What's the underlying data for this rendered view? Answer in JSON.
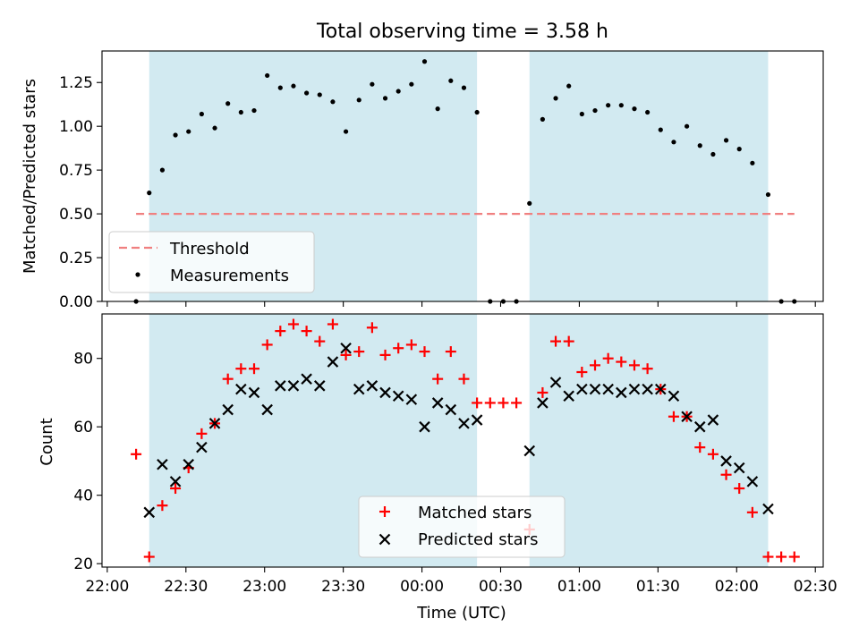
{
  "figure": {
    "title": "Total observing time = 3.58 h",
    "xlabel": "Time (UTC)"
  },
  "chart_data": [
    {
      "type": "scatter",
      "panel": "top",
      "ylabel": "Matched/Predicted stars",
      "xlim": [
        "21:58",
        "02:33"
      ],
      "ylim": [
        0,
        1.43
      ],
      "yticks": [
        {
          "value": 0.0,
          "label": "0.00"
        },
        {
          "value": 0.25,
          "label": "0.25"
        },
        {
          "value": 0.5,
          "label": "0.50"
        },
        {
          "value": 0.75,
          "label": "0.75"
        },
        {
          "value": 1.0,
          "label": "1.00"
        },
        {
          "value": 1.25,
          "label": "1.25"
        }
      ],
      "shaded_intervals": [
        [
          "22:16",
          "00:21"
        ],
        [
          "00:41",
          "02:12"
        ]
      ],
      "shade_color": "#add8e6",
      "threshold": {
        "name": "Threshold",
        "value": 0.5,
        "x_range": [
          "22:11",
          "02:22"
        ],
        "color": "#f08080"
      },
      "series": [
        {
          "name": "Measurements",
          "color": "#000000",
          "x": [
            "22:11",
            "22:16",
            "22:21",
            "22:26",
            "22:31",
            "22:36",
            "22:41",
            "22:46",
            "22:51",
            "22:56",
            "23:01",
            "23:06",
            "23:11",
            "23:16",
            "23:21",
            "23:26",
            "23:31",
            "23:36",
            "23:41",
            "23:46",
            "23:51",
            "23:56",
            "00:01",
            "00:06",
            "00:11",
            "00:16",
            "00:21",
            "00:26",
            "00:31",
            "00:36",
            "00:41",
            "00:46",
            "00:51",
            "00:56",
            "01:01",
            "01:06",
            "01:11",
            "01:16",
            "01:21",
            "01:26",
            "01:31",
            "01:36",
            "01:41",
            "01:46",
            "01:51",
            "01:56",
            "02:01",
            "02:06",
            "02:12",
            "02:17",
            "02:22"
          ],
          "y": [
            0.0,
            0.62,
            0.75,
            0.95,
            0.97,
            1.07,
            0.99,
            1.13,
            1.08,
            1.09,
            1.29,
            1.22,
            1.23,
            1.19,
            1.18,
            1.14,
            0.97,
            1.15,
            1.24,
            1.16,
            1.2,
            1.24,
            1.37,
            1.1,
            1.26,
            1.22,
            1.08,
            0.0,
            0.0,
            0.0,
            0.56,
            1.04,
            1.16,
            1.23,
            1.07,
            1.09,
            1.12,
            1.12,
            1.1,
            1.08,
            0.98,
            0.91,
            1.0,
            0.89,
            0.84,
            0.92,
            0.87,
            0.79,
            0.61,
            0.0,
            0.0
          ]
        }
      ],
      "legend": {
        "location": "lower-left",
        "entries": [
          "Threshold",
          "Measurements"
        ]
      }
    },
    {
      "type": "scatter",
      "panel": "bottom",
      "ylabel": "Count",
      "xlabel": "Time (UTC)",
      "xlim": [
        "21:58",
        "02:33"
      ],
      "ylim": [
        19,
        93
      ],
      "yticks": [
        {
          "value": 20,
          "label": "20"
        },
        {
          "value": 40,
          "label": "40"
        },
        {
          "value": 60,
          "label": "60"
        },
        {
          "value": 80,
          "label": "80"
        }
      ],
      "xticks": [
        {
          "value": "22:00",
          "label": "22:00"
        },
        {
          "value": "22:30",
          "label": "22:30"
        },
        {
          "value": "23:00",
          "label": "23:00"
        },
        {
          "value": "23:30",
          "label": "23:30"
        },
        {
          "value": "00:00",
          "label": "00:00"
        },
        {
          "value": "00:30",
          "label": "00:30"
        },
        {
          "value": "01:00",
          "label": "01:00"
        },
        {
          "value": "01:30",
          "label": "01:30"
        },
        {
          "value": "02:00",
          "label": "02:00"
        },
        {
          "value": "02:30",
          "label": "02:30"
        }
      ],
      "shaded_intervals": [
        [
          "22:16",
          "00:21"
        ],
        [
          "00:41",
          "02:12"
        ]
      ],
      "shade_color": "#add8e6",
      "series": [
        {
          "name": "Matched stars",
          "marker": "+",
          "color": "#ff0000",
          "x": [
            "22:11",
            "22:16",
            "22:21",
            "22:26",
            "22:31",
            "22:36",
            "22:41",
            "22:46",
            "22:51",
            "22:56",
            "23:01",
            "23:06",
            "23:11",
            "23:16",
            "23:21",
            "23:26",
            "23:31",
            "23:36",
            "23:41",
            "23:46",
            "23:51",
            "23:56",
            "00:01",
            "00:06",
            "00:11",
            "00:16",
            "00:21",
            "00:26",
            "00:31",
            "00:36",
            "00:41",
            "00:46",
            "00:51",
            "00:56",
            "01:01",
            "01:06",
            "01:11",
            "01:16",
            "01:21",
            "01:26",
            "01:31",
            "01:36",
            "01:41",
            "01:46",
            "01:51",
            "01:56",
            "02:01",
            "02:06",
            "02:12",
            "02:17",
            "02:22"
          ],
          "y": [
            52,
            22,
            37,
            42,
            48,
            58,
            61,
            74,
            77,
            77,
            84,
            88,
            90,
            88,
            85,
            90,
            81,
            82,
            89,
            81,
            83,
            84,
            82,
            74,
            82,
            74,
            67,
            67,
            67,
            67,
            30,
            70,
            85,
            85,
            76,
            78,
            80,
            79,
            78,
            77,
            71,
            63,
            63,
            54,
            52,
            46,
            42,
            35,
            22,
            22,
            22
          ]
        },
        {
          "name": "Predicted stars",
          "marker": "x",
          "color": "#000000",
          "x": [
            "22:16",
            "22:21",
            "22:26",
            "22:31",
            "22:36",
            "22:41",
            "22:46",
            "22:51",
            "22:56",
            "23:01",
            "23:06",
            "23:11",
            "23:16",
            "23:21",
            "23:26",
            "23:31",
            "23:36",
            "23:41",
            "23:46",
            "23:51",
            "23:56",
            "00:01",
            "00:06",
            "00:11",
            "00:16",
            "00:21",
            "00:41",
            "00:46",
            "00:51",
            "00:56",
            "01:01",
            "01:06",
            "01:11",
            "01:16",
            "01:21",
            "01:26",
            "01:31",
            "01:36",
            "01:41",
            "01:46",
            "01:51",
            "01:56",
            "02:01",
            "02:06",
            "02:12"
          ],
          "y": [
            35,
            49,
            44,
            49,
            54,
            61,
            65,
            71,
            70,
            65,
            72,
            72,
            74,
            72,
            79,
            83,
            71,
            72,
            70,
            69,
            68,
            60,
            67,
            65,
            61,
            62,
            53,
            67,
            73,
            69,
            71,
            71,
            71,
            70,
            71,
            71,
            71,
            69,
            63,
            60,
            62,
            50,
            48,
            44,
            36
          ]
        }
      ],
      "legend": {
        "location": "lower-center",
        "entries": [
          "Matched stars",
          "Predicted stars"
        ]
      }
    }
  ]
}
